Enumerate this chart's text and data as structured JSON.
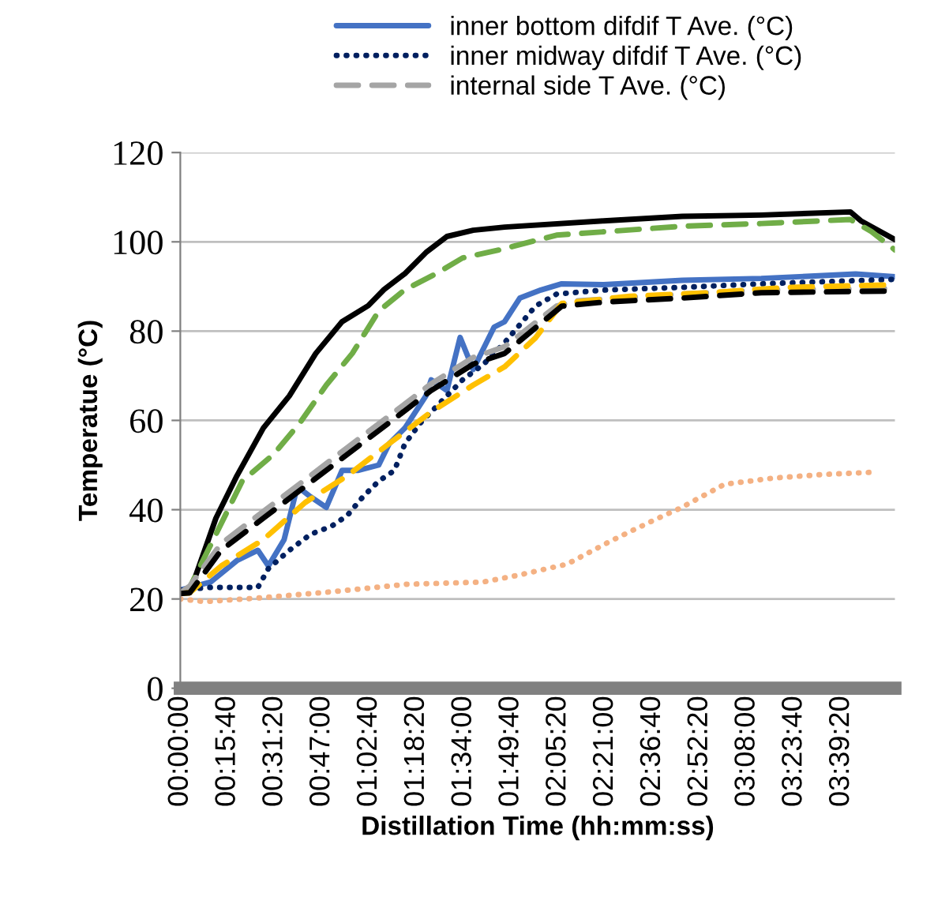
{
  "chart_data": {
    "type": "line",
    "xlabel": "Distillation Time (hh:mm:ss)",
    "ylabel": "Temperatue (°C)",
    "xlim": [
      0,
      3.951
    ],
    "ylim": [
      0,
      120
    ],
    "yticks": [
      0,
      20,
      40,
      60,
      80,
      100,
      120
    ],
    "xticks": [
      {
        "value": 0,
        "label": "00:00:00"
      },
      {
        "value": 0.2611,
        "label": "00:15:40"
      },
      {
        "value": 0.5222,
        "label": "00:31:20"
      },
      {
        "value": 0.7833,
        "label": "00:47:00"
      },
      {
        "value": 1.0444,
        "label": "01:02:40"
      },
      {
        "value": 1.3056,
        "label": "01:18:20"
      },
      {
        "value": 1.5667,
        "label": "01:34:00"
      },
      {
        "value": 1.8278,
        "label": "01:49:40"
      },
      {
        "value": 2.0889,
        "label": "02:05:20"
      },
      {
        "value": 2.35,
        "label": "02:21:00"
      },
      {
        "value": 2.6111,
        "label": "02:36:40"
      },
      {
        "value": 2.8722,
        "label": "02:52:20"
      },
      {
        "value": 3.1333,
        "label": "03:08:00"
      },
      {
        "value": 3.3944,
        "label": "03:23:40"
      },
      {
        "value": 3.6556,
        "label": "03:39:20"
      }
    ],
    "grid": "y",
    "legend": "top",
    "series": [
      {
        "color": "#000000",
        "line_style": "solid",
        "x": [
          0,
          0.052,
          0.197,
          0.313,
          0.459,
          0.603,
          0.749,
          0.894,
          1.039,
          1.126,
          1.242,
          1.358,
          1.474,
          1.619,
          1.793,
          2.341,
          2.776,
          3.212,
          3.705,
          3.763,
          3.951
        ],
        "values": [
          21.4,
          21.4,
          38.1,
          47.6,
          58.3,
          65.5,
          75.0,
          82.1,
          85.7,
          89.3,
          92.9,
          97.6,
          101.2,
          102.6,
          103.3,
          104.7,
          105.7,
          106.0,
          106.7,
          104.7,
          100.5
        ]
      },
      {
        "color": "#70ad47",
        "line_style": "dashed",
        "x": [
          0,
          0.052,
          0.197,
          0.342,
          0.516,
          0.662,
          0.807,
          0.951,
          1.097,
          1.242,
          1.416,
          1.561,
          1.764,
          2.08,
          2.776,
          3.212,
          3.705,
          3.821,
          3.951
        ],
        "values": [
          21.4,
          22.6,
          34.5,
          46.4,
          52.4,
          59.5,
          67.9,
          75.0,
          84.5,
          89.3,
          92.9,
          96.4,
          98.2,
          101.5,
          103.5,
          104.1,
          105.0,
          102.3,
          98.2
        ]
      },
      {
        "name": "inner bottom difdif T Ave. (°C)",
        "color": "#4472c4",
        "line_style": "solid",
        "x": [
          0,
          0.168,
          0.313,
          0.429,
          0.487,
          0.574,
          0.647,
          0.72,
          0.807,
          0.894,
          0.981,
          1.097,
          1.155,
          1.242,
          1.358,
          1.387,
          1.474,
          1.547,
          1.619,
          1.735,
          1.793,
          1.877,
          1.993,
          2.109,
          2.341,
          2.776,
          3.212,
          3.734,
          3.951
        ],
        "values": [
          22.0,
          23.8,
          28.6,
          30.9,
          27.4,
          33.3,
          45.2,
          42.9,
          40.5,
          48.8,
          48.8,
          50.0,
          54.8,
          58.3,
          65.5,
          69.1,
          66.7,
          78.6,
          71.4,
          80.9,
          82.1,
          87.4,
          89.2,
          90.6,
          90.4,
          91.4,
          91.8,
          92.8,
          92.2
        ]
      },
      {
        "name": "inner midway difdif T Ave. (°C)",
        "color": "#002060",
        "line_style": "dotted",
        "x": [
          0,
          0.168,
          0.429,
          0.487,
          0.603,
          0.72,
          0.836,
          0.923,
          1.01,
          1.097,
          1.184,
          1.242,
          1.329,
          1.445,
          1.561,
          1.677,
          1.793,
          1.964,
          2.08,
          2.341,
          2.776,
          3.212,
          3.951
        ],
        "values": [
          22.0,
          22.6,
          22.6,
          26.8,
          30.9,
          34.5,
          36.3,
          38.7,
          42.9,
          46.4,
          48.8,
          54.8,
          59.5,
          64.3,
          69.1,
          72.6,
          77.4,
          85.6,
          88.3,
          89.2,
          89.8,
          90.6,
          91.6
        ]
      },
      {
        "name": "internal side T Ave. (°C)",
        "color": "#a5a5a5",
        "line_style": "dashed",
        "x": [
          0,
          0.052,
          0.226,
          0.459,
          0.69,
          0.923,
          1.155,
          1.387,
          1.619,
          1.793,
          2.08,
          2.196,
          2.776,
          3.212,
          3.951
        ],
        "values": [
          21.4,
          22.9,
          32.4,
          39.6,
          46.7,
          53.9,
          61.0,
          68.2,
          74.1,
          76.5,
          85.6,
          86.8,
          88.3,
          89.2,
          89.5
        ]
      },
      {
        "color": "#ffc000",
        "line_style": "dashed",
        "x": [
          0,
          0.052,
          0.226,
          0.459,
          0.69,
          0.923,
          1.155,
          1.387,
          1.619,
          1.793,
          1.964,
          2.109,
          2.486,
          2.922,
          3.357,
          3.951
        ],
        "values": [
          21.2,
          21.4,
          27.4,
          33.3,
          41.6,
          47.6,
          54.8,
          61.9,
          67.9,
          72.0,
          78.5,
          86.2,
          87.8,
          88.6,
          89.8,
          90.4
        ]
      },
      {
        "color": "#000000",
        "line_style": "dashed",
        "x": [
          0,
          0.052,
          0.226,
          0.459,
          0.69,
          0.923,
          1.155,
          1.387,
          1.619,
          1.793,
          2.109,
          2.341,
          2.776,
          3.212,
          3.951
        ],
        "values": [
          21.2,
          21.4,
          30.9,
          38.1,
          45.2,
          52.4,
          59.5,
          66.7,
          72.6,
          75.0,
          85.6,
          86.5,
          87.4,
          88.6,
          89.0
        ]
      },
      {
        "color": "#f4b183",
        "line_style": "dotted",
        "x": [
          0,
          0.136,
          0.426,
          0.833,
          1.253,
          1.674,
          1.877,
          2.138,
          2.385,
          2.631,
          2.762,
          3.009,
          3.284,
          3.56,
          3.835
        ],
        "values": [
          20.0,
          19.4,
          20.2,
          21.6,
          23.3,
          23.8,
          25.4,
          27.8,
          33.1,
          37.9,
          40.3,
          45.7,
          47.1,
          47.9,
          48.4
        ]
      }
    ]
  }
}
